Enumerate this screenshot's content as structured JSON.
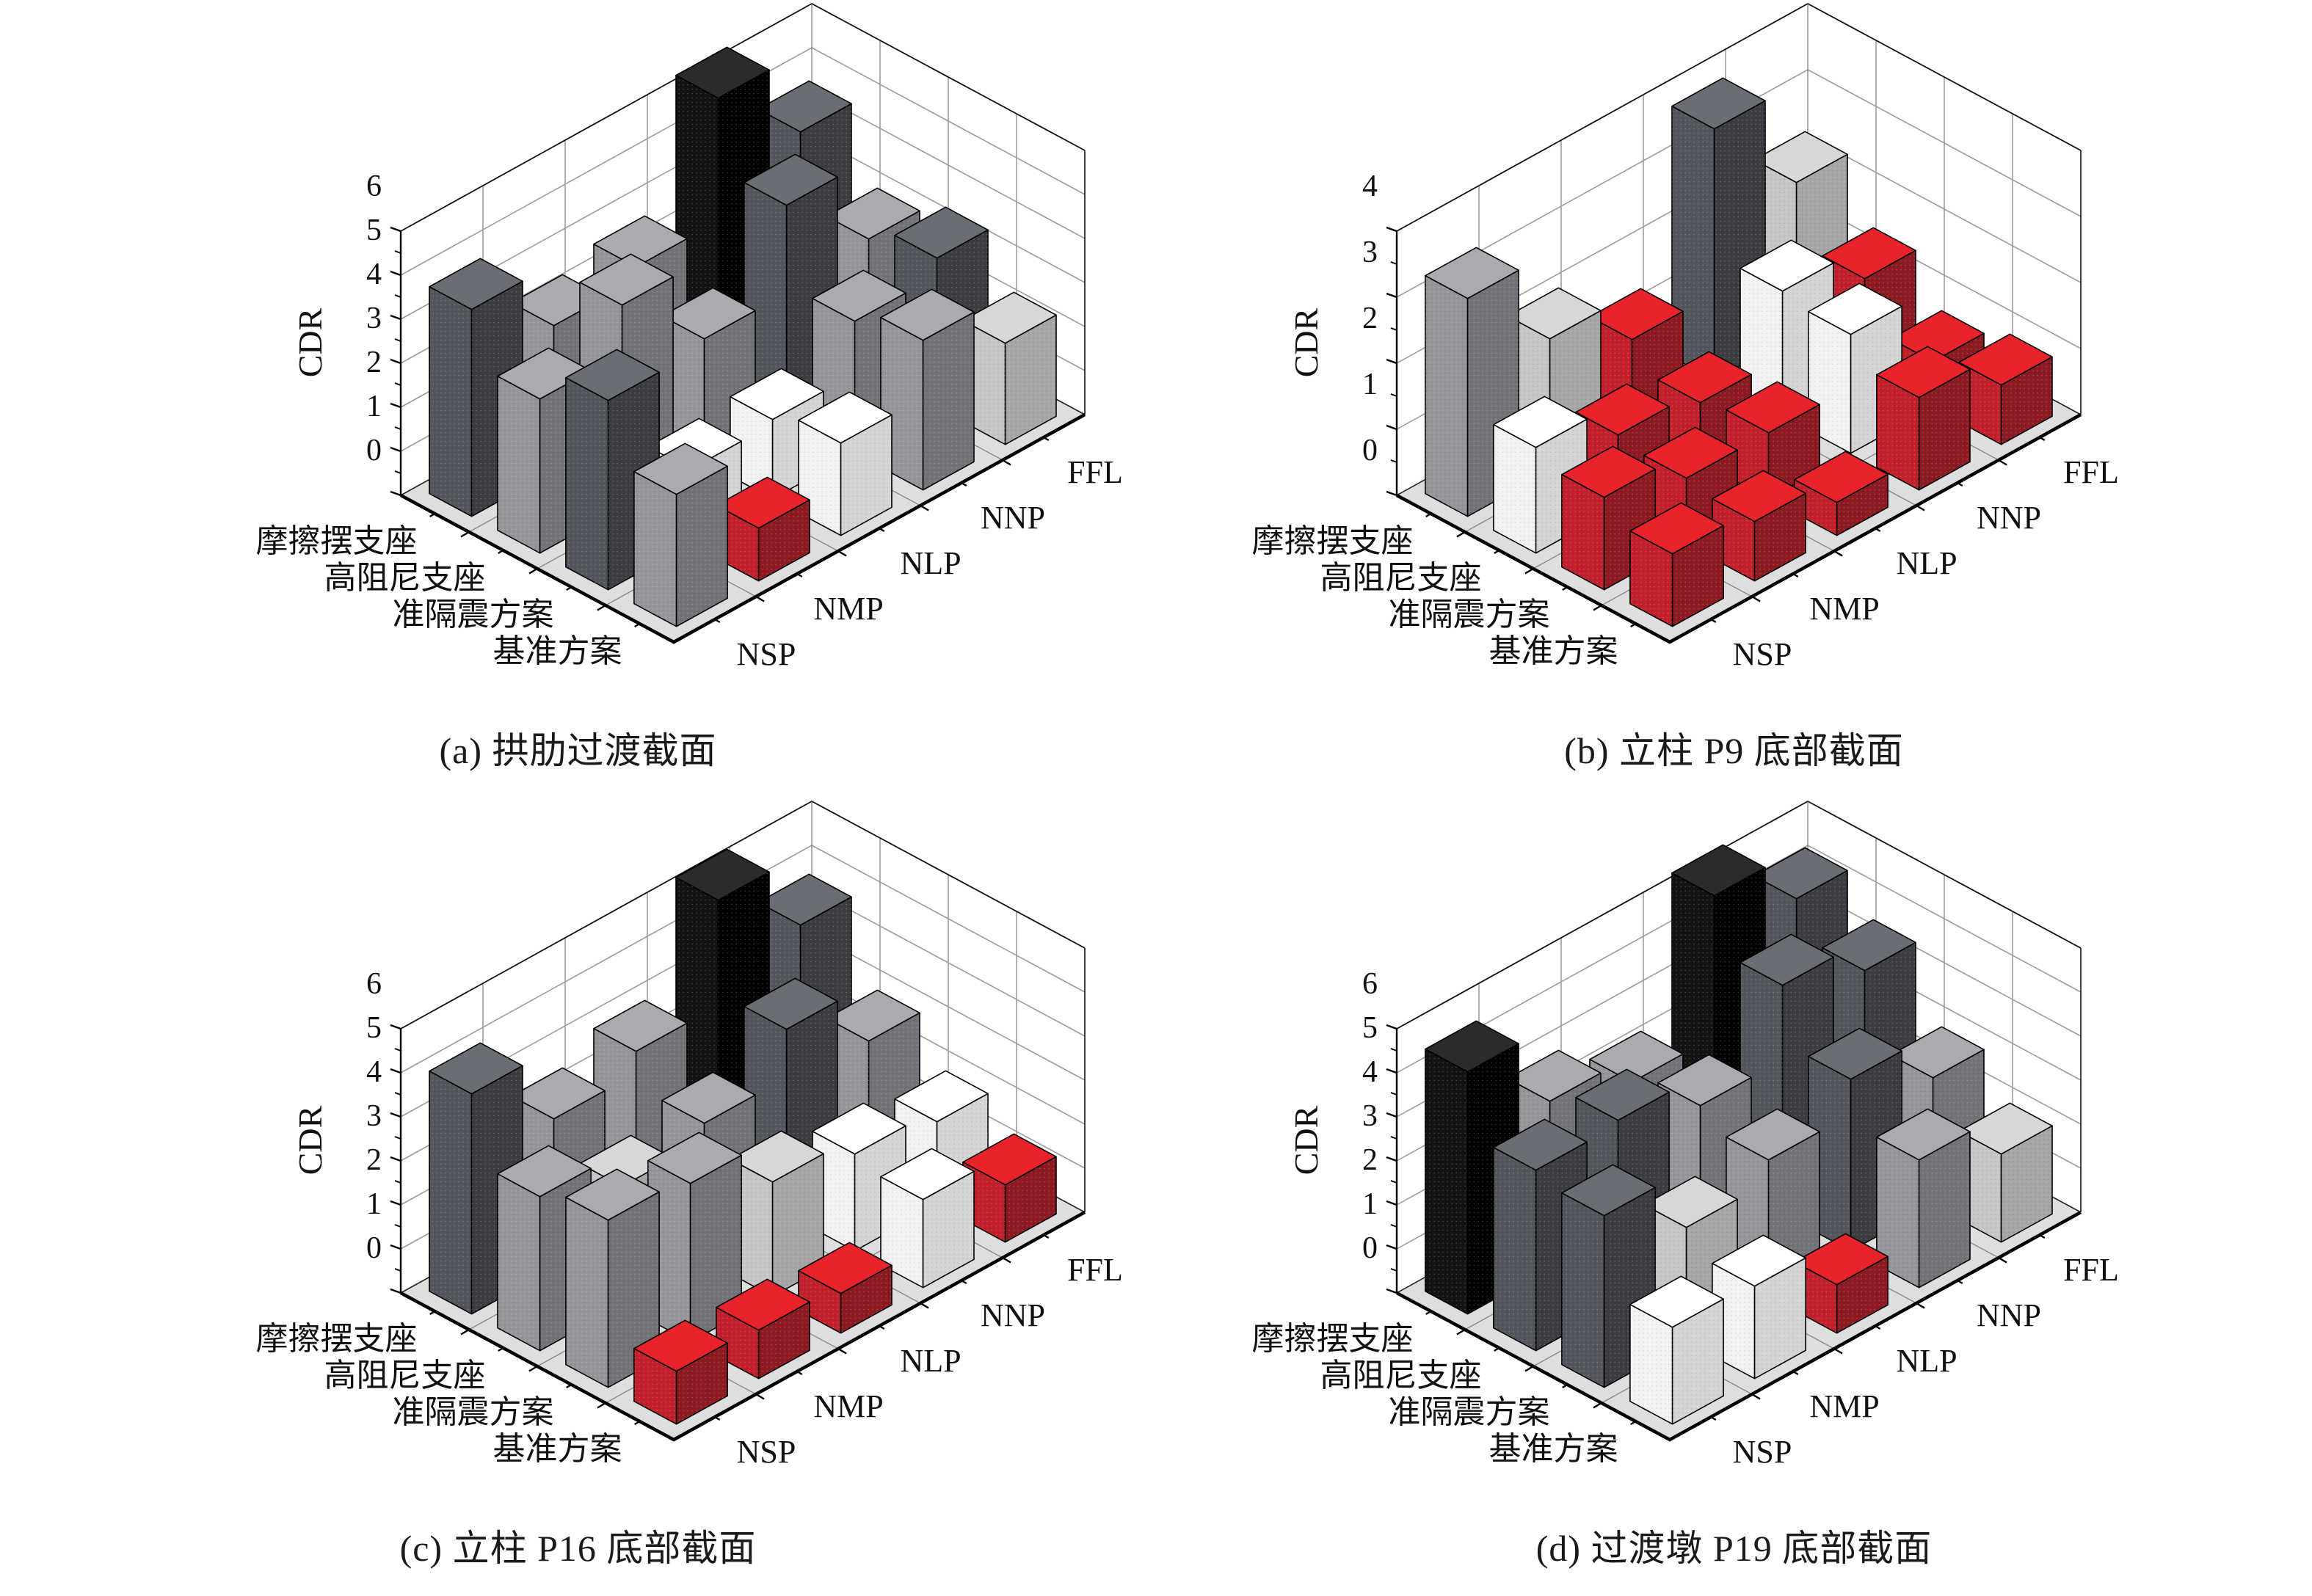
{
  "shared": {
    "z_axis_title": "CDR",
    "x_categories": [
      "NSP",
      "NMP",
      "NLP",
      "NNP",
      "FFL"
    ],
    "y_categories": [
      "基准方案",
      "准隔震方案",
      "高阻尼支座",
      "摩擦摆支座"
    ],
    "background": "#ffffff",
    "floor_color": "#dedede",
    "wall_color": "#ffffff",
    "grid_color": "#9c9c9c"
  },
  "palette": {
    "red": {
      "top": "#e8232b",
      "left": "#c2202a",
      "right": "#8e1a21"
    },
    "white": {
      "top": "#ffffff",
      "left": "#f2f2f2",
      "right": "#d4d4d6"
    },
    "lightgray": {
      "top": "#d7d7d9",
      "left": "#c6c6c8",
      "right": "#a6a6a8"
    },
    "gray": {
      "top": "#a9abb1",
      "left": "#94969c",
      "right": "#717379"
    },
    "darkgray": {
      "top": "#6b6d75",
      "left": "#54565e",
      "right": "#3b3d43"
    },
    "black": {
      "top": "#2b2b2b",
      "left": "#131313",
      "right": "#000000"
    }
  },
  "chart_data": [
    {
      "id": "a",
      "type": "bar3d",
      "title": "(a) 拱肋过渡截面",
      "zlabel": "CDR",
      "z_max": 6,
      "z_ticks": [
        0,
        1,
        2,
        3,
        4,
        5,
        6
      ],
      "box": "left",
      "categories": [
        "NSP",
        "NMP",
        "NLP",
        "NNP",
        "FFL"
      ],
      "series": [
        {
          "name": "基准方案",
          "values": [
            3.0,
            1.2,
            2.1,
            3.4,
            2.3
          ],
          "levels": [
            "gray",
            "red",
            "white",
            "gray",
            "lightgray"
          ]
        },
        {
          "name": "准隔震方案",
          "values": [
            4.3,
            1.7,
            1.8,
            3.0,
            3.4
          ],
          "levels": [
            "darkgray",
            "white",
            "white",
            "gray",
            "darkgray"
          ]
        },
        {
          "name": "高阻尼支座",
          "values": [
            3.5,
            4.6,
            2.8,
            4.8,
            3.0
          ],
          "levels": [
            "gray",
            "gray",
            "gray",
            "darkgray",
            "gray"
          ]
        },
        {
          "name": "摩擦摆支座",
          "values": [
            4.7,
            3.3,
            3.6,
            6.4,
            4.6
          ],
          "levels": [
            "darkgray",
            "gray",
            "gray",
            "black",
            "darkgray"
          ]
        }
      ]
    },
    {
      "id": "b",
      "type": "bar3d",
      "title": "(b) 立柱 P9 底部截面",
      "zlabel": "CDR",
      "z_max": 4,
      "z_ticks": [
        0,
        1,
        2,
        3,
        4
      ],
      "box": "right",
      "categories": [
        "NSP",
        "NMP",
        "NLP",
        "NNP",
        "FFL"
      ],
      "series": [
        {
          "name": "基准方案",
          "values": [
            1.1,
            0.9,
            0.5,
            1.4,
            0.9
          ],
          "levels": [
            "red",
            "red",
            "red",
            "red",
            "red"
          ]
        },
        {
          "name": "准隔震方案",
          "values": [
            1.4,
            1.0,
            1.0,
            1.8,
            0.7
          ],
          "levels": [
            "red",
            "red",
            "red",
            "white",
            "red"
          ]
        },
        {
          "name": "高阻尼支座",
          "values": [
            1.6,
            1.1,
            0.9,
            1.9,
            1.4
          ],
          "levels": [
            "white",
            "red",
            "red",
            "white",
            "red"
          ]
        },
        {
          "name": "摩擦摆支座",
          "values": [
            3.3,
            2.0,
            1.3,
            3.8,
            2.3
          ],
          "levels": [
            "gray",
            "lightgray",
            "red",
            "darkgray",
            "lightgray"
          ]
        }
      ]
    },
    {
      "id": "c",
      "type": "bar3d",
      "title": "(c) 立柱 P16 底部截面",
      "zlabel": "CDR",
      "z_max": 6,
      "z_ticks": [
        0,
        1,
        2,
        3,
        4,
        5,
        6
      ],
      "box": "left",
      "categories": [
        "NSP",
        "NMP",
        "NLP",
        "NNP",
        "FFL"
      ],
      "series": [
        {
          "name": "基准方案",
          "values": [
            1.2,
            1.1,
            0.9,
            2.0,
            1.3
          ],
          "levels": [
            "red",
            "red",
            "red",
            "white",
            "red"
          ]
        },
        {
          "name": "准隔震方案",
          "values": [
            3.8,
            3.6,
            2.6,
            2.2,
            1.9
          ],
          "levels": [
            "gray",
            "gray",
            "lightgray",
            "white",
            "white"
          ]
        },
        {
          "name": "高阻尼支座",
          "values": [
            3.5,
            2.7,
            3.1,
            4.2,
            2.9
          ],
          "levels": [
            "gray",
            "lightgray",
            "gray",
            "darkgray",
            "gray"
          ]
        },
        {
          "name": "摩擦摆支座",
          "values": [
            5.0,
            3.4,
            3.9,
            6.3,
            4.7
          ],
          "levels": [
            "darkgray",
            "gray",
            "gray",
            "black",
            "darkgray"
          ]
        }
      ]
    },
    {
      "id": "d",
      "type": "bar3d",
      "title": "(d) 过渡墩 P19 底部截面",
      "zlabel": "CDR",
      "z_max": 6,
      "z_ticks": [
        0,
        1,
        2,
        3,
        4,
        5,
        6
      ],
      "box": "right",
      "categories": [
        "NSP",
        "NMP",
        "NLP",
        "NNP",
        "FFL"
      ],
      "series": [
        {
          "name": "基准方案",
          "values": [
            2.2,
            2.1,
            1.1,
            2.9,
            2.0
          ],
          "levels": [
            "white",
            "white",
            "red",
            "gray",
            "lightgray"
          ]
        },
        {
          "name": "准隔震方案",
          "values": [
            3.9,
            2.6,
            3.1,
            3.9,
            2.9
          ],
          "levels": [
            "darkgray",
            "lightgray",
            "gray",
            "darkgray",
            "gray"
          ]
        },
        {
          "name": "高阻尼支座",
          "values": [
            4.1,
            4.2,
            3.5,
            5.2,
            4.5
          ],
          "levels": [
            "darkgray",
            "darkgray",
            "gray",
            "darkgray",
            "darkgray"
          ]
        },
        {
          "name": "摩擦摆支座",
          "values": [
            5.5,
            3.8,
            3.2,
            6.4,
            5.3
          ],
          "levels": [
            "black",
            "gray",
            "gray",
            "black",
            "darkgray"
          ]
        }
      ]
    }
  ]
}
